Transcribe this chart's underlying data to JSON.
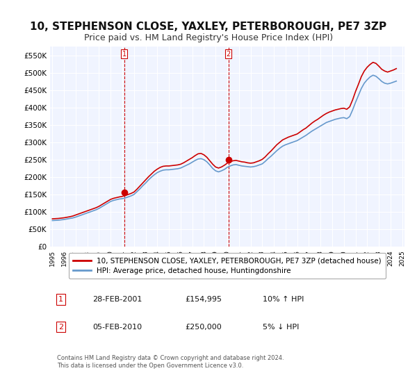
{
  "title": "10, STEPHENSON CLOSE, YAXLEY, PETERBOROUGH, PE7 3ZP",
  "subtitle": "Price paid vs. HM Land Registry's House Price Index (HPI)",
  "xlabel": "",
  "ylabel": "",
  "ylim": [
    0,
    575000
  ],
  "yticks": [
    0,
    50000,
    100000,
    150000,
    200000,
    250000,
    300000,
    350000,
    400000,
    450000,
    500000,
    550000
  ],
  "ytick_labels": [
    "£0",
    "£50K",
    "£100K",
    "£150K",
    "£200K",
    "£250K",
    "£300K",
    "£350K",
    "£400K",
    "£450K",
    "£500K",
    "£550K"
  ],
  "background_color": "#ffffff",
  "plot_bg_color": "#f0f4ff",
  "grid_color": "#ffffff",
  "red_line_color": "#cc0000",
  "blue_line_color": "#6699cc",
  "marker1_date_idx": 6.25,
  "marker1_value": 154995,
  "marker1_label": "1",
  "marker2_date_idx": 15.1,
  "marker2_value": 250000,
  "marker2_label": "2",
  "vline1_color": "#cc0000",
  "vline2_color": "#cc0000",
  "legend_line1": "10, STEPHENSON CLOSE, YAXLEY, PETERBOROUGH, PE7 3ZP (detached house)",
  "legend_line2": "HPI: Average price, detached house, Huntingdonshire",
  "table_rows": [
    [
      "1",
      "28-FEB-2001",
      "£154,995",
      "10% ↑ HPI"
    ],
    [
      "2",
      "05-FEB-2010",
      "£250,000",
      "5% ↓ HPI"
    ]
  ],
  "footnote": "Contains HM Land Registry data © Crown copyright and database right 2024.\nThis data is licensed under the Open Government Licence v3.0.",
  "title_fontsize": 11,
  "subtitle_fontsize": 9,
  "axis_fontsize": 8,
  "hpi_data_x": [
    1995.0,
    1995.25,
    1995.5,
    1995.75,
    1996.0,
    1996.25,
    1996.5,
    1996.75,
    1997.0,
    1997.25,
    1997.5,
    1997.75,
    1998.0,
    1998.25,
    1998.5,
    1998.75,
    1999.0,
    1999.25,
    1999.5,
    1999.75,
    2000.0,
    2000.25,
    2000.5,
    2000.75,
    2001.0,
    2001.25,
    2001.5,
    2001.75,
    2002.0,
    2002.25,
    2002.5,
    2002.75,
    2003.0,
    2003.25,
    2003.5,
    2003.75,
    2004.0,
    2004.25,
    2004.5,
    2004.75,
    2005.0,
    2005.25,
    2005.5,
    2005.75,
    2006.0,
    2006.25,
    2006.5,
    2006.75,
    2007.0,
    2007.25,
    2007.5,
    2007.75,
    2008.0,
    2008.25,
    2008.5,
    2008.75,
    2009.0,
    2009.25,
    2009.5,
    2009.75,
    2010.0,
    2010.25,
    2010.5,
    2010.75,
    2011.0,
    2011.25,
    2011.5,
    2011.75,
    2012.0,
    2012.25,
    2012.5,
    2012.75,
    2013.0,
    2013.25,
    2013.5,
    2013.75,
    2014.0,
    2014.25,
    2014.5,
    2014.75,
    2015.0,
    2015.25,
    2015.5,
    2015.75,
    2016.0,
    2016.25,
    2016.5,
    2016.75,
    2017.0,
    2017.25,
    2017.5,
    2017.75,
    2018.0,
    2018.25,
    2018.5,
    2018.75,
    2019.0,
    2019.25,
    2019.5,
    2019.75,
    2020.0,
    2020.25,
    2020.5,
    2020.75,
    2021.0,
    2021.25,
    2021.5,
    2021.75,
    2022.0,
    2022.25,
    2022.5,
    2022.75,
    2023.0,
    2023.25,
    2023.5,
    2023.75,
    2024.0,
    2024.25,
    2024.5
  ],
  "hpi_data_y": [
    75000,
    75500,
    76000,
    77000,
    78000,
    79500,
    81000,
    82500,
    85000,
    88000,
    91000,
    94000,
    97000,
    100000,
    103000,
    106000,
    110000,
    115000,
    120000,
    125000,
    130000,
    133000,
    135000,
    137000,
    138000,
    140000,
    143000,
    146000,
    150000,
    158000,
    166000,
    175000,
    183000,
    192000,
    200000,
    207000,
    213000,
    217000,
    220000,
    221000,
    221000,
    222000,
    223000,
    224000,
    226000,
    230000,
    234000,
    238000,
    243000,
    248000,
    252000,
    253000,
    250000,
    244000,
    235000,
    225000,
    218000,
    215000,
    218000,
    222000,
    228000,
    232000,
    235000,
    236000,
    234000,
    232000,
    231000,
    230000,
    229000,
    230000,
    232000,
    235000,
    238000,
    245000,
    253000,
    260000,
    268000,
    276000,
    283000,
    289000,
    293000,
    296000,
    299000,
    302000,
    305000,
    310000,
    315000,
    320000,
    326000,
    332000,
    337000,
    342000,
    347000,
    352000,
    357000,
    360000,
    363000,
    366000,
    368000,
    370000,
    371000,
    368000,
    374000,
    393000,
    415000,
    435000,
    455000,
    470000,
    480000,
    488000,
    493000,
    490000,
    483000,
    475000,
    470000,
    468000,
    470000,
    473000,
    476000
  ],
  "red_data_x": [
    1995.0,
    1995.25,
    1995.5,
    1995.75,
    1996.0,
    1996.25,
    1996.5,
    1996.75,
    1997.0,
    1997.25,
    1997.5,
    1997.75,
    1998.0,
    1998.25,
    1998.5,
    1998.75,
    1999.0,
    1999.25,
    1999.5,
    1999.75,
    2000.0,
    2000.25,
    2000.5,
    2000.75,
    2001.0,
    2001.25,
    2001.5,
    2001.75,
    2002.0,
    2002.25,
    2002.5,
    2002.75,
    2003.0,
    2003.25,
    2003.5,
    2003.75,
    2004.0,
    2004.25,
    2004.5,
    2004.75,
    2005.0,
    2005.25,
    2005.5,
    2005.75,
    2006.0,
    2006.25,
    2006.5,
    2006.75,
    2007.0,
    2007.25,
    2007.5,
    2007.75,
    2008.0,
    2008.25,
    2008.5,
    2008.75,
    2009.0,
    2009.25,
    2009.5,
    2009.75,
    2010.0,
    2010.25,
    2010.5,
    2010.75,
    2011.0,
    2011.25,
    2011.5,
    2011.75,
    2012.0,
    2012.25,
    2012.5,
    2012.75,
    2013.0,
    2013.25,
    2013.5,
    2013.75,
    2014.0,
    2014.25,
    2014.5,
    2014.75,
    2015.0,
    2015.25,
    2015.5,
    2015.75,
    2016.0,
    2016.25,
    2016.5,
    2016.75,
    2017.0,
    2017.25,
    2017.5,
    2017.75,
    2018.0,
    2018.25,
    2018.5,
    2018.75,
    2019.0,
    2019.25,
    2019.5,
    2019.75,
    2020.0,
    2020.25,
    2020.5,
    2020.75,
    2021.0,
    2021.25,
    2021.5,
    2021.75,
    2022.0,
    2022.25,
    2022.5,
    2022.75,
    2023.0,
    2023.25,
    2023.5,
    2023.75,
    2024.0,
    2024.25,
    2024.5
  ],
  "red_data_y": [
    80000,
    80500,
    81000,
    82000,
    83000,
    84500,
    86000,
    88000,
    91000,
    94000,
    97000,
    100000,
    103000,
    106000,
    109000,
    112000,
    116000,
    121000,
    126000,
    131000,
    136000,
    139000,
    141000,
    143000,
    144500,
    147000,
    150000,
    153000,
    157000,
    165000,
    174000,
    183000,
    192000,
    201000,
    209000,
    217000,
    223000,
    228000,
    231000,
    232000,
    232000,
    233000,
    234000,
    235000,
    237000,
    241000,
    246000,
    251000,
    256000,
    262000,
    267000,
    268000,
    264000,
    257000,
    247000,
    237000,
    229000,
    226000,
    229000,
    234000,
    240000,
    244000,
    247000,
    248000,
    246000,
    244000,
    243000,
    241000,
    240000,
    241000,
    244000,
    247000,
    251000,
    258000,
    267000,
    275000,
    284000,
    293000,
    300000,
    307000,
    311000,
    315000,
    318000,
    321000,
    324000,
    330000,
    336000,
    341000,
    348000,
    355000,
    361000,
    366000,
    372000,
    378000,
    383000,
    387000,
    390000,
    393000,
    395000,
    397000,
    398000,
    395000,
    402000,
    422000,
    446000,
    467000,
    489000,
    505000,
    516000,
    524000,
    530000,
    527000,
    519000,
    510000,
    505000,
    502000,
    505000,
    508000,
    512000
  ]
}
